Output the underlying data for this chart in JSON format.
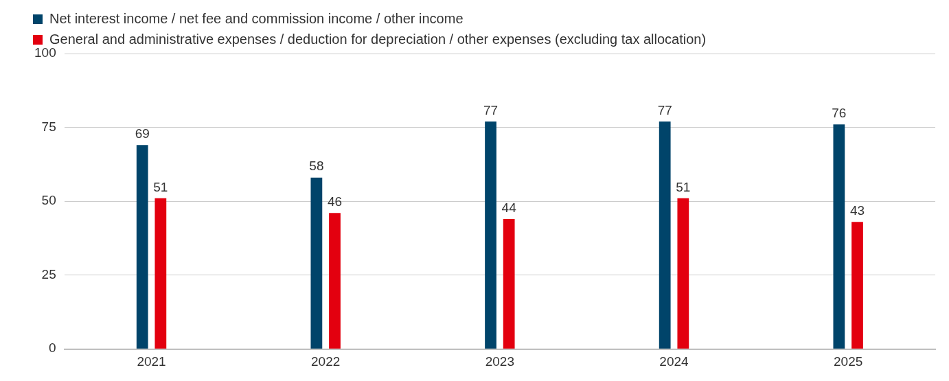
{
  "chart_data": {
    "type": "bar",
    "categories": [
      "2021",
      "2022",
      "2023",
      "2024",
      "2025"
    ],
    "series": [
      {
        "name": "Net interest income / net fee and commission income / other income",
        "color": "#00446a",
        "values": [
          69,
          58,
          77,
          77,
          76
        ]
      },
      {
        "name": "General and administrative expenses / deduction for depreciation / other expenses (excluding tax allocation)",
        "color": "#e3000f",
        "values": [
          51,
          46,
          44,
          51,
          43
        ]
      }
    ],
    "ylim": [
      0,
      100
    ],
    "yticks": [
      0,
      25,
      50,
      75,
      100
    ],
    "grid": "y",
    "legend": "top",
    "data_labels": true
  }
}
